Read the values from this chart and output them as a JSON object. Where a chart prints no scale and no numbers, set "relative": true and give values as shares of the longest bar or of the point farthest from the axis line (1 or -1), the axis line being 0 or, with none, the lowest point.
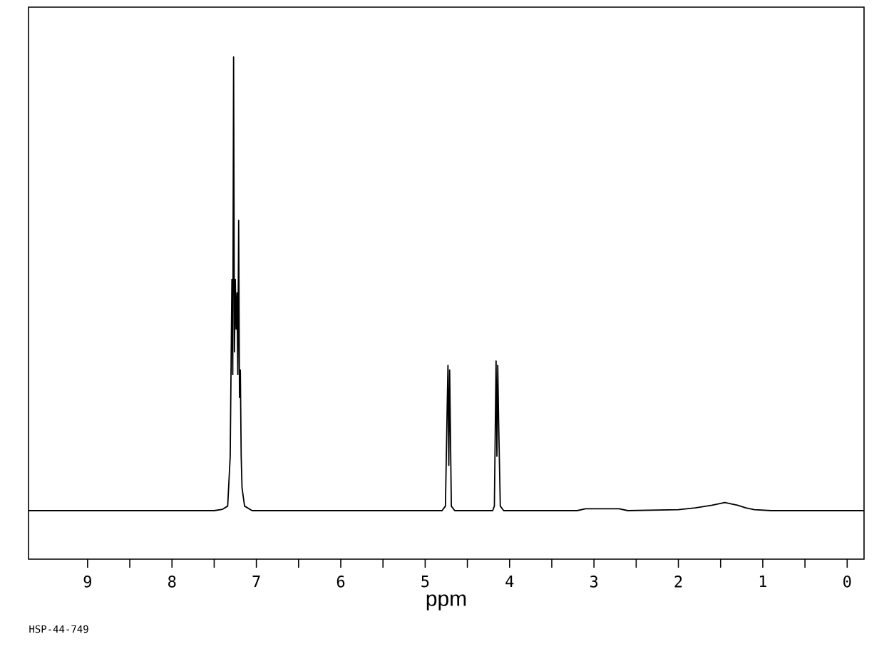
{
  "chart_data": {
    "type": "line",
    "relative": true,
    "xlabel": "ppm",
    "color": "#000000",
    "annotations": [
      "HSP-44-749"
    ],
    "x": [
      9.7,
      7.5,
      7.4,
      7.34,
      7.31,
      7.29,
      7.28,
      7.27,
      7.26,
      7.25,
      7.24,
      7.23,
      7.22,
      7.21,
      7.2,
      7.19,
      7.18,
      7.17,
      7.14,
      7.05,
      5.0,
      4.8,
      4.76,
      4.74,
      4.73,
      4.72,
      4.71,
      4.69,
      4.65,
      4.4,
      4.2,
      4.18,
      4.16,
      4.15,
      4.14,
      4.13,
      4.11,
      4.07,
      3.8,
      3.2,
      3.1,
      2.7,
      2.6,
      2.0,
      1.8,
      1.6,
      1.45,
      1.3,
      1.2,
      1.1,
      0.9,
      -0.2
    ],
    "values": [
      0,
      0,
      0.003,
      0.01,
      0.12,
      0.51,
      0.3,
      1.0,
      0.35,
      0.51,
      0.4,
      0.48,
      0.3,
      0.64,
      0.25,
      0.31,
      0.12,
      0.05,
      0.01,
      0,
      0,
      0,
      0.01,
      0.22,
      0.32,
      0.1,
      0.31,
      0.01,
      0,
      0,
      0,
      0.01,
      0.33,
      0.12,
      0.32,
      0.2,
      0.01,
      0,
      0,
      0,
      0.004,
      0.004,
      0,
      0.002,
      0.006,
      0.012,
      0.018,
      0.012,
      0.006,
      0.002,
      0,
      0
    ],
    "xlim": [
      9.7,
      -0.2
    ],
    "xticks": [
      9,
      8,
      7,
      6,
      5,
      4,
      3,
      2,
      1,
      0
    ]
  }
}
